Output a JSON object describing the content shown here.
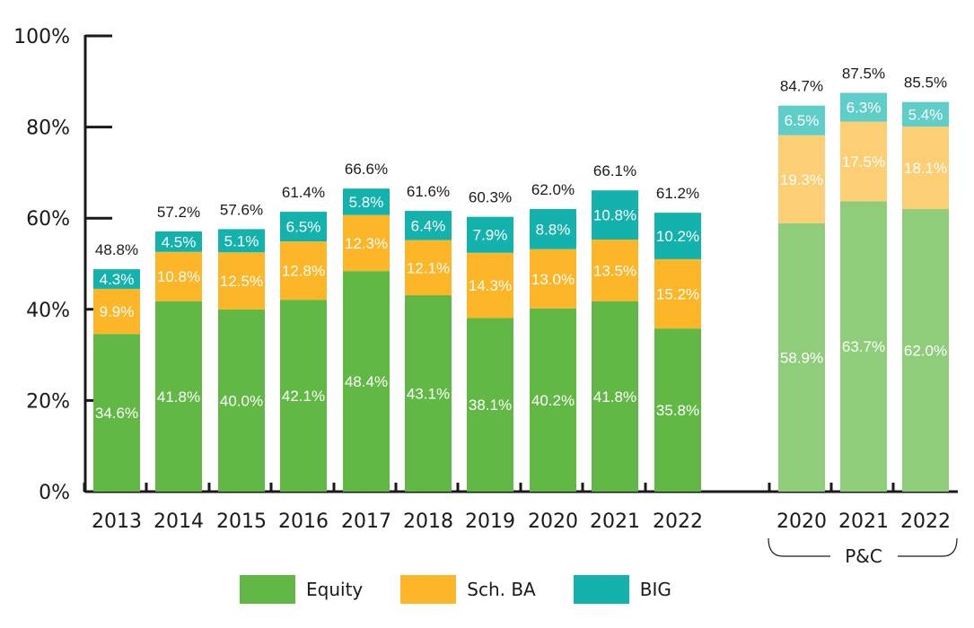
{
  "chart_data": {
    "type": "bar",
    "stacked": true,
    "categories": [
      "2013",
      "2014",
      "2015",
      "2016",
      "2017",
      "2018",
      "2019",
      "2020",
      "2021",
      "2022"
    ],
    "series": [
      {
        "name": "Equity",
        "values": [
          34.6,
          41.8,
          40.0,
          42.1,
          48.4,
          43.1,
          38.1,
          40.2,
          41.8,
          35.8
        ]
      },
      {
        "name": "Sch. BA",
        "values": [
          9.9,
          10.8,
          12.5,
          12.8,
          12.3,
          12.1,
          14.3,
          13.0,
          13.5,
          15.2
        ]
      },
      {
        "name": "BIG",
        "values": [
          4.3,
          4.5,
          5.1,
          6.5,
          5.8,
          6.4,
          7.9,
          8.8,
          10.8,
          10.2
        ]
      }
    ],
    "totals": [
      "48.8%",
      "57.2%",
      "57.6%",
      "61.4%",
      "66.6%",
      "61.6%",
      "60.3%",
      "62.0%",
      "66.1%",
      "61.2%"
    ],
    "segment_labels": [
      [
        "34.6%",
        "41.8%",
        "40.0%",
        "42.1%",
        "48.4%",
        "43.1%",
        "38.1%",
        "40.2%",
        "41.8%",
        "35.8%"
      ],
      [
        "9.9%",
        "10.8%",
        "12.5%",
        "12.8%",
        "12.3%",
        "12.1%",
        "14.3%",
        "13.0%",
        "13.5%",
        "15.2%"
      ],
      [
        "4.3%",
        "4.5%",
        "5.1%",
        "6.5%",
        "5.8%",
        "6.4%",
        "7.9%",
        "8.8%",
        "10.8%",
        "10.2%"
      ]
    ],
    "comparison_group": {
      "label": "P&C",
      "categories": [
        "2020",
        "2021",
        "2022"
      ],
      "series": [
        {
          "name": "Equity",
          "values": [
            58.9,
            63.7,
            62.0
          ]
        },
        {
          "name": "Sch. BA",
          "values": [
            19.3,
            17.5,
            18.1
          ]
        },
        {
          "name": "BIG",
          "values": [
            6.5,
            6.3,
            5.4
          ]
        }
      ],
      "totals": [
        "84.7%",
        "87.5%",
        "85.5%"
      ],
      "segment_labels": [
        [
          "58.9%",
          "63.7%",
          "62.0%"
        ],
        [
          "19.3%",
          "17.5%",
          "18.1%"
        ],
        [
          "6.5%",
          "6.3%",
          "5.4%"
        ]
      ]
    },
    "y_ticks": [
      "0%",
      "20%",
      "40%",
      "60%",
      "80%",
      "100%"
    ],
    "ylim": [
      0,
      100
    ],
    "xlabel": "",
    "ylabel": "",
    "grid": false,
    "legend_position": "bottom",
    "colors": {
      "Equity": "#62b845",
      "Sch. BA": "#fcb627",
      "BIG": "#14b2ad",
      "Equity_light": "#8fcd7a",
      "Sch. BA_light": "#fdcf74",
      "BIG_light": "#5fcdc8"
    }
  },
  "legend": {
    "items": [
      {
        "label": "Equity",
        "color": "#62b845"
      },
      {
        "label": "Sch. BA",
        "color": "#fcb627"
      },
      {
        "label": "BIG",
        "color": "#14b2ad"
      }
    ]
  }
}
